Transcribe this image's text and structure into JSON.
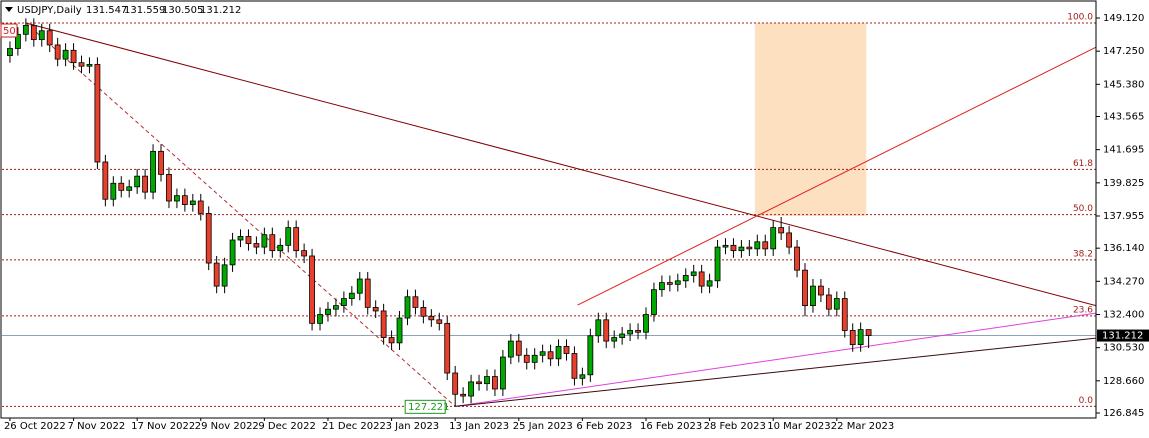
{
  "chart_data": {
    "type": "candlestick",
    "title": "USDJPY,Daily",
    "categories": [
      "26 Oct 2022",
      null,
      null,
      null,
      null,
      null,
      null,
      null,
      "7 Nov 2022",
      null,
      null,
      null,
      null,
      null,
      null,
      null,
      "17 Nov 2022",
      null,
      null,
      null,
      null,
      null,
      null,
      null,
      "29 Nov 2022",
      null,
      null,
      null,
      null,
      null,
      null,
      null,
      "9 Dec 2022",
      null,
      null,
      null,
      null,
      null,
      null,
      null,
      "21 Dec 2022",
      null,
      null,
      null,
      null,
      null,
      null,
      null,
      "3 Jan 2023",
      null,
      null,
      null,
      null,
      null,
      null,
      null,
      "13 Jan 2023",
      null,
      null,
      null,
      null,
      null,
      null,
      null,
      "25 Jan 2023",
      null,
      null,
      null,
      null,
      null,
      null,
      null,
      "6 Feb 2023",
      null,
      null,
      null,
      null,
      null,
      null,
      null,
      "16 Feb 2023",
      null,
      null,
      null,
      null,
      null,
      null,
      null,
      "28 Feb 2023",
      null,
      null,
      null,
      null,
      null,
      null,
      null,
      "10 Mar 2023",
      null,
      null,
      null,
      null,
      null,
      null,
      null,
      "22 Mar 2023",
      null,
      null,
      null,
      null
    ],
    "open": [
      147.0,
      147.4,
      148.2,
      148.7,
      147.9,
      148.4,
      147.6,
      146.8,
      147.3,
      146.6,
      146.4,
      146.5,
      141.0,
      138.9,
      139.8,
      139.4,
      139.6,
      140.2,
      139.3,
      141.6,
      140.3,
      138.8,
      139.1,
      138.6,
      138.8,
      138.1,
      135.3,
      134.0,
      135.2,
      136.6,
      136.8,
      136.4,
      136.2,
      136.9,
      136.0,
      136.3,
      137.3,
      136.0,
      135.7,
      131.9,
      132.4,
      132.7,
      132.9,
      133.3,
      133.6,
      134.4,
      132.8,
      132.6,
      131.1,
      130.8,
      132.2,
      133.4,
      132.8,
      132.3,
      132.1,
      131.9,
      129.1,
      127.9,
      127.8,
      128.6,
      128.5,
      128.9,
      128.2,
      130.0,
      130.9,
      130.1,
      129.7,
      130.1,
      130.3,
      129.9,
      130.6,
      130.2,
      128.8,
      129.0,
      131.2,
      132.1,
      130.9,
      131.1,
      131.3,
      131.5,
      131.4,
      132.4,
      133.8,
      134.2,
      134.1,
      134.3,
      134.6,
      134.8,
      134.0,
      134.3,
      136.2,
      136.3,
      136.0,
      136.2,
      136.1,
      136.5,
      136.1,
      137.3,
      137.0,
      136.2,
      134.9,
      132.9,
      134.0,
      133.5,
      132.7,
      133.3,
      131.5,
      130.7,
      131.547
    ],
    "high": [
      147.8,
      148.6,
      149.1,
      149.1,
      148.8,
      148.8,
      148.0,
      147.7,
      147.7,
      147.0,
      146.9,
      146.9,
      141.4,
      140.2,
      140.2,
      140.0,
      140.6,
      140.6,
      142.0,
      142.0,
      140.7,
      139.5,
      139.5,
      139.2,
      139.2,
      138.5,
      135.7,
      135.6,
      137.0,
      137.2,
      137.2,
      136.8,
      137.3,
      137.3,
      136.7,
      137.7,
      137.7,
      136.4,
      136.1,
      132.8,
      133.1,
      133.3,
      133.7,
      134.0,
      134.8,
      134.8,
      133.2,
      133.0,
      131.5,
      132.6,
      133.8,
      133.8,
      133.2,
      132.7,
      132.5,
      132.3,
      129.5,
      128.3,
      129.0,
      129.0,
      129.3,
      129.3,
      130.4,
      131.3,
      131.3,
      130.5,
      130.5,
      130.7,
      130.7,
      131.0,
      131.0,
      130.6,
      129.4,
      131.6,
      132.5,
      132.5,
      131.5,
      131.7,
      131.9,
      131.9,
      132.8,
      134.2,
      134.6,
      134.6,
      134.7,
      135.0,
      135.2,
      135.2,
      134.7,
      136.6,
      136.7,
      136.7,
      136.6,
      136.6,
      136.9,
      136.9,
      137.7,
      137.9,
      137.4,
      136.6,
      135.3,
      134.4,
      134.4,
      133.9,
      133.7,
      133.7,
      131.9,
      131.95,
      131.559
    ],
    "low": [
      146.6,
      147.0,
      147.8,
      147.5,
      147.5,
      147.2,
      146.4,
      146.4,
      146.2,
      146.0,
      146.0,
      140.6,
      138.5,
      138.5,
      139.0,
      139.0,
      139.2,
      138.9,
      138.9,
      139.9,
      138.4,
      138.4,
      138.2,
      138.2,
      137.7,
      134.9,
      133.6,
      133.6,
      134.8,
      136.2,
      136.0,
      135.8,
      135.8,
      135.6,
      135.6,
      135.9,
      135.6,
      135.3,
      131.5,
      131.5,
      132.0,
      132.3,
      132.5,
      132.9,
      133.2,
      132.4,
      132.2,
      130.7,
      130.4,
      130.4,
      131.8,
      132.4,
      131.9,
      131.7,
      131.5,
      128.7,
      127.221,
      127.4,
      127.4,
      128.1,
      128.1,
      127.8,
      127.8,
      129.6,
      129.7,
      129.3,
      129.3,
      129.7,
      129.5,
      129.5,
      129.8,
      128.4,
      128.4,
      128.6,
      130.8,
      130.5,
      130.5,
      130.7,
      130.9,
      131.0,
      131.0,
      132.0,
      133.4,
      133.7,
      133.7,
      133.9,
      134.2,
      133.6,
      133.6,
      133.9,
      135.8,
      135.6,
      135.6,
      135.7,
      135.7,
      135.7,
      135.7,
      136.6,
      135.8,
      134.5,
      132.3,
      132.5,
      133.1,
      132.3,
      132.3,
      131.1,
      130.3,
      130.3,
      130.505
    ],
    "close": [
      147.4,
      148.2,
      148.7,
      147.9,
      148.4,
      147.6,
      146.8,
      147.3,
      146.6,
      146.4,
      146.5,
      141.0,
      138.9,
      139.8,
      139.4,
      139.6,
      140.2,
      139.3,
      141.6,
      140.3,
      138.8,
      139.1,
      138.6,
      138.8,
      138.1,
      135.3,
      134.0,
      135.2,
      136.6,
      136.8,
      136.4,
      136.2,
      136.9,
      136.0,
      136.3,
      137.3,
      136.0,
      135.7,
      131.9,
      132.4,
      132.7,
      132.9,
      133.3,
      133.6,
      134.4,
      132.8,
      132.6,
      131.1,
      130.8,
      132.2,
      133.4,
      132.8,
      132.3,
      132.1,
      131.9,
      129.1,
      127.9,
      127.8,
      128.6,
      128.5,
      128.9,
      128.2,
      130.0,
      130.9,
      130.1,
      129.7,
      130.1,
      130.3,
      129.9,
      130.6,
      130.2,
      128.8,
      129.0,
      131.2,
      132.1,
      130.9,
      131.1,
      131.3,
      131.5,
      131.4,
      132.4,
      133.8,
      134.2,
      134.1,
      134.3,
      134.6,
      134.8,
      134.0,
      134.3,
      136.2,
      136.3,
      136.0,
      136.2,
      136.1,
      136.5,
      136.1,
      137.3,
      137.0,
      136.2,
      134.9,
      132.9,
      134.0,
      133.5,
      132.7,
      133.3,
      131.5,
      130.7,
      131.55,
      131.212
    ],
    "up_color": "#00a800",
    "down_color": "#e8402c",
    "xlim": [
      -1,
      136.6
    ],
    "ylim": [
      126.563,
      149.909
    ],
    "yticks": [
      {
        "value": 149.12,
        "label": "149.120"
      },
      {
        "value": 147.25,
        "label": "147.250"
      },
      {
        "value": 145.38,
        "label": "145.380"
      },
      143.565,
      141.695,
      139.825,
      137.955,
      {
        "value": 136.14,
        "label": "136.140"
      },
      {
        "value": 134.27,
        "label": "134.270"
      },
      {
        "value": 132.4,
        "label": "132.400"
      },
      {
        "value": 130.53,
        "label": "130.530"
      },
      {
        "value": 128.66,
        "label": "128.660"
      },
      126.845
    ],
    "grid": false,
    "fibonacci": {
      "color": "#a0201a",
      "levels": [
        {
          "label": "100.0",
          "price": 148.84
        },
        {
          "label": "61.8",
          "price": 140.58
        },
        {
          "label": "50.0",
          "price": 138.03
        },
        {
          "label": "38.2",
          "price": 135.48
        },
        {
          "label": "23.6",
          "price": 132.32
        },
        {
          "label": "0.0",
          "price": 127.22
        }
      ]
    },
    "trendlines": [
      {
        "color": "#800000",
        "dashed": false,
        "points": [
          [
            2,
            148.84
          ],
          [
            136.6,
            132.9
          ]
        ]
      },
      {
        "color": "#e02020",
        "dashed": false,
        "points": [
          [
            71.4,
            132.93
          ],
          [
            136.6,
            147.47
          ]
        ]
      },
      {
        "color": "#b03030",
        "dashed": true,
        "points": [
          [
            2,
            148.84
          ],
          [
            56,
            127.221
          ]
        ]
      },
      {
        "color": "#e040e0",
        "dashed": false,
        "points": [
          [
            56,
            127.221
          ],
          [
            136.6,
            132.48
          ]
        ]
      },
      {
        "color": "#3a0a0a",
        "dashed": false,
        "points": [
          [
            56,
            127.221
          ],
          [
            136.6,
            131.07
          ]
        ]
      }
    ],
    "zones": [
      {
        "color": "#fde0c0",
        "x": [
          93.7,
          107.7
        ],
        "price": [
          148.84,
          137.96
        ]
      }
    ],
    "marker_label": "50"
  }
}
